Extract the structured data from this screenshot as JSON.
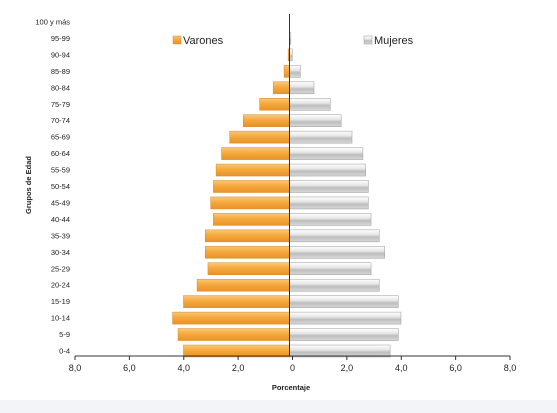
{
  "chart_data": {
    "type": "bar",
    "orientation": "horizontal",
    "layout": "population-pyramid",
    "categories": [
      "0-4",
      "5-9",
      "10-14",
      "15-19",
      "20-24",
      "25-29",
      "30-34",
      "35-39",
      "40-44",
      "45-49",
      "50-54",
      "55-59",
      "60-64",
      "65-69",
      "70-74",
      "75-79",
      "80-84",
      "85-89",
      "90-94",
      "95-99",
      "100 y más"
    ],
    "series": [
      {
        "name": "Varones",
        "side": "left",
        "color": "#f5a93c",
        "values": [
          3.9,
          4.1,
          4.3,
          3.9,
          3.4,
          3.0,
          3.1,
          3.1,
          2.8,
          2.9,
          2.8,
          2.7,
          2.5,
          2.2,
          1.7,
          1.1,
          0.6,
          0.2,
          0.05,
          0.0,
          0.0
        ]
      },
      {
        "name": "Mujeres",
        "side": "right",
        "color": "#c4c4c4",
        "values": [
          3.7,
          4.0,
          4.1,
          4.0,
          3.3,
          3.0,
          3.5,
          3.3,
          3.0,
          2.9,
          2.9,
          2.8,
          2.7,
          2.3,
          1.9,
          1.5,
          0.9,
          0.4,
          0.1,
          0.05,
          0.0
        ]
      }
    ],
    "xlabel": "Porcentaje",
    "ylabel": "Grupos de Edad",
    "xlim": [
      -8,
      8
    ],
    "x_ticks": [
      "8,0",
      "6,0",
      "4,0",
      "2,0",
      "0",
      "2,0",
      "4,0",
      "6,0",
      "8,0"
    ],
    "legend": "top",
    "grid": false
  }
}
